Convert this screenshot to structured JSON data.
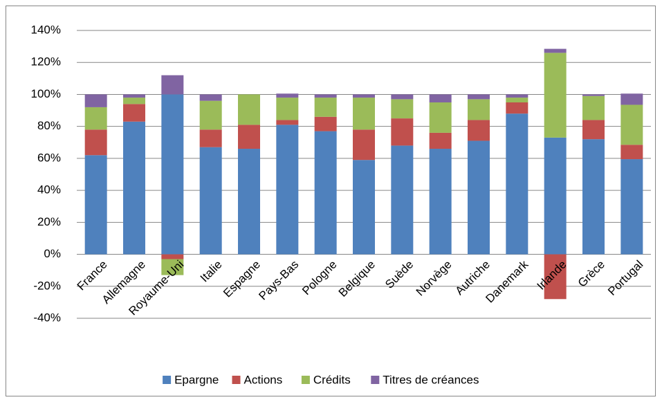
{
  "chart_data": {
    "type": "stacked_bar",
    "categories": [
      "France",
      "Allemagne",
      "Royaume-Uni",
      "Italie",
      "Espagne",
      "Pays-Bas",
      "Pologne",
      "Belgique",
      "Suède",
      "Norvège",
      "Autriche",
      "Danemark",
      "Irlande",
      "Grèce",
      "Portugal"
    ],
    "series": [
      {
        "name": "Epargne",
        "color": "#4f81bd",
        "values": [
          62,
          83,
          100,
          67,
          66,
          81,
          77,
          59,
          68,
          66,
          71,
          88,
          73,
          72,
          59.5
        ]
      },
      {
        "name": "Actions",
        "color": "#c0504d",
        "values": [
          16,
          11,
          -3,
          11,
          15,
          3,
          9,
          19,
          17,
          10,
          13,
          7,
          -28,
          12,
          9
        ]
      },
      {
        "name": "Crédits",
        "color": "#9bbb59",
        "values": [
          14,
          4,
          -10,
          18,
          19,
          14,
          12,
          20,
          12,
          19,
          13,
          3,
          53,
          15,
          25
        ]
      },
      {
        "name": "Titres de créances",
        "color": "#8064a2",
        "values": [
          8,
          2,
          12,
          4,
          0,
          2.5,
          2,
          2,
          3,
          5,
          3,
          2,
          2.5,
          1,
          7
        ]
      }
    ],
    "ylim": [
      -40,
      140
    ],
    "yticks": [
      {
        "value": -40,
        "label": "-40%"
      },
      {
        "value": -20,
        "label": "-20%"
      },
      {
        "value": 0,
        "label": "0%"
      },
      {
        "value": 20,
        "label": "20%"
      },
      {
        "value": 40,
        "label": "40%"
      },
      {
        "value": 60,
        "label": "60%"
      },
      {
        "value": 80,
        "label": "80%"
      },
      {
        "value": 100,
        "label": "100%"
      },
      {
        "value": 120,
        "label": "120%"
      },
      {
        "value": 140,
        "label": "140%"
      }
    ],
    "grid": true,
    "legend": "bottom"
  }
}
